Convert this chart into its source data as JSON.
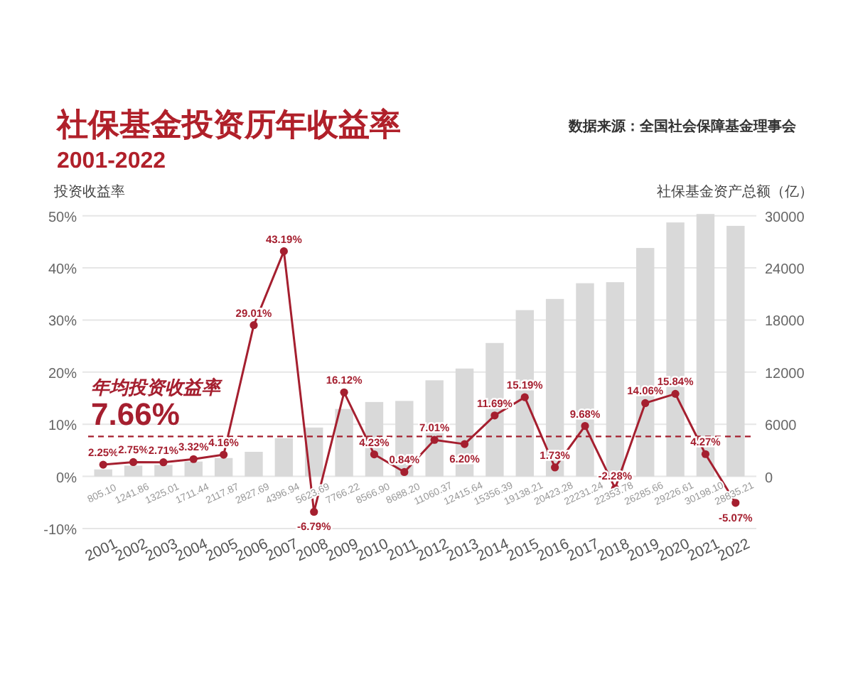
{
  "chart_data": {
    "type": "bar",
    "title": "社保基金投资历年收益率",
    "subtitle": "2001-2022",
    "ylabel": "投资收益率",
    "y2label": "社保基金资产总额（亿）",
    "annotations": [
      "数据来源：全国社会保障基金理事会"
    ],
    "categories": [
      "2001",
      "2002",
      "2003",
      "2004",
      "2005",
      "2006",
      "2007",
      "2008",
      "2009",
      "2010",
      "2011",
      "2012",
      "2013",
      "2014",
      "2015",
      "2016",
      "2017",
      "2018",
      "2019",
      "2020",
      "2021",
      "2022"
    ],
    "series": [
      {
        "axis": "y2",
        "color": "#d9d9d9",
        "values": [
          805.1,
          1241.86,
          1325.01,
          1711.44,
          2117.87,
          2827.69,
          4396.94,
          5623.69,
          7766.22,
          8566.9,
          8688.2,
          11060.37,
          12415.64,
          15356.39,
          19138.21,
          20423.28,
          22231.24,
          22353.78,
          26285.66,
          29226.61,
          30198.1,
          28835.21
        ],
        "value_labels": [
          "805.10",
          "1241.86",
          "1325.01",
          "1711.44",
          "2117.87",
          "2827.69",
          "4396.94",
          "5623.69",
          "7766.22",
          "8566.90",
          "8688.20",
          "11060.37",
          "12415.64",
          "15356.39",
          "19138.21",
          "20423.28",
          "22231.24",
          "22353.78",
          "26285.66",
          "29226.61",
          "30198.10",
          "28835.21"
        ]
      },
      {
        "type": "line",
        "color": "#a51f2f",
        "marker": "circle",
        "line_style": "solid",
        "values": [
          2.25,
          2.75,
          2.71,
          3.32,
          4.16,
          29.01,
          43.19,
          -6.79,
          16.12,
          4.23,
          0.84,
          7.01,
          6.2,
          11.69,
          15.19,
          1.73,
          9.68,
          -2.28,
          14.06,
          15.84,
          4.27,
          -5.07
        ],
        "value_labels": [
          "2.25%",
          "2.75%",
          "2.71%",
          "3.32%",
          "4.16%",
          "29.01%",
          "43.19%",
          "-6.79%",
          "16.12%",
          "4.23%",
          "0.84%",
          "7.01%",
          "6.20%",
          "11.69%",
          "15.19%",
          "1.73%",
          "9.68%",
          "-2.28%",
          "14.06%",
          "15.84%",
          "4.27%",
          "-5.07%"
        ]
      }
    ],
    "ylim": [
      -10,
      50.5
    ],
    "yticks": [
      {
        "value": -10,
        "label": "-10%"
      },
      {
        "value": 0,
        "label": "0%"
      },
      {
        "value": 10,
        "label": "10%"
      },
      {
        "value": 20,
        "label": "20%"
      },
      {
        "value": 30,
        "label": "30%"
      },
      {
        "value": 40,
        "label": "40%"
      },
      {
        "value": 50,
        "label": "50%"
      }
    ],
    "y2lim": [
      -6000,
      30300
    ],
    "y2ticks": [
      0,
      6000,
      12000,
      18000,
      24000,
      30000
    ],
    "ref_lines": [
      {
        "axis": "y",
        "value": 7.66,
        "label": "年均投资收益率\n7.66%",
        "color": "#a51f2f",
        "line_style": "dashed"
      }
    ],
    "grid": "y"
  }
}
